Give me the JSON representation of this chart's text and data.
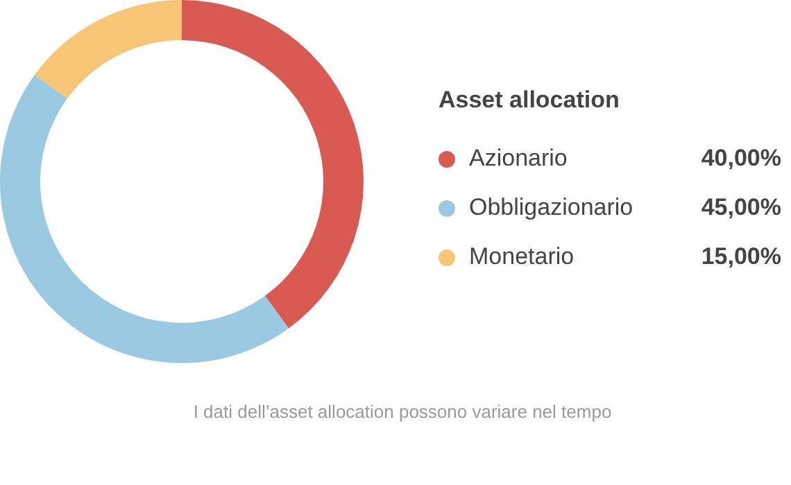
{
  "chart_data": {
    "type": "donut",
    "legend_title": "Asset allocation",
    "categories": [
      "Azionario",
      "Obbligazionario",
      "Monetario"
    ],
    "values": [
      40,
      45,
      15
    ],
    "colors": [
      "#d95a50",
      "#9ac9e2",
      "#f6c676"
    ],
    "value_labels": [
      "40,00%",
      "45,00%",
      "15,00%"
    ],
    "legend": "right",
    "annotations": [
      "I dati dell’asset allocation possono variare nel tempo"
    ]
  }
}
